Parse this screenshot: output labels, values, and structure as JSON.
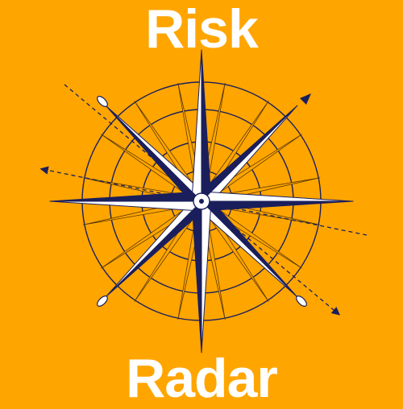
{
  "title_top": "Risk",
  "title_bottom": "Radar",
  "colors": {
    "background": "#FFA500",
    "title": "#FFFFFF",
    "ink": "#1A1F5C",
    "star_light": "#FFFFFF"
  },
  "icon": "compass-rose-icon"
}
